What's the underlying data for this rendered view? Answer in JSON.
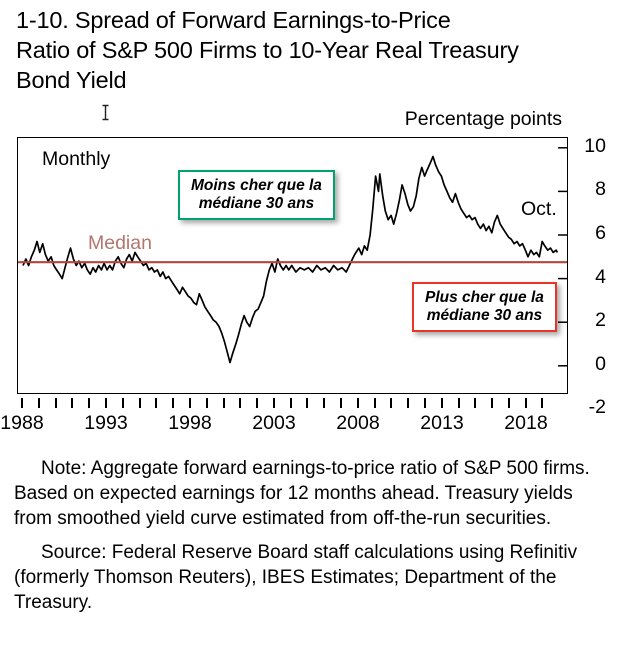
{
  "header": {
    "title_lines": [
      "1-10. Spread of Forward Earnings-to-Price",
      "Ratio of S&P 500 Firms to 10-Year Real Treasury",
      "Bond Yield"
    ],
    "axis_units": "Percentage points"
  },
  "chart_labels": {
    "frequency": "Monthly",
    "median": "Median",
    "last_obs": "Oct.",
    "cheap_line1": "Moins cher que la",
    "cheap_line2": "médiane 30 ans",
    "rich_line1": "Plus cher que la",
    "rich_line2": "médiane 30 ans"
  },
  "colors": {
    "series": "#000000",
    "median_line": "#b2453d",
    "median_label": "#b5756b",
    "cheap_box_border": "#00a36b",
    "rich_box_border": "#e8352a"
  },
  "chart_data": {
    "type": "line",
    "title": "1-10. Spread of Forward Earnings-to-Price Ratio of S&P 500 Firms to 10-Year Real Treasury Bond Yield",
    "ylabel": "Percentage points",
    "frequency": "Monthly",
    "ylim": [
      -2,
      10
    ],
    "yticks": [
      10,
      8,
      6,
      4,
      2,
      0,
      -2
    ],
    "xticks": [
      1988,
      1993,
      1998,
      2003,
      2008,
      2013,
      2018
    ],
    "xrange": [
      1988,
      2019
    ],
    "median": 4.75,
    "median_label": "Median",
    "last_point_label": "Oct.",
    "legend_position": "none",
    "grid": false,
    "series": [
      {
        "name": "Spread of forward earnings-to-price ratio to 10-year real Treasury yield",
        "points": [
          [
            1988.0,
            4.6
          ],
          [
            1988.17,
            4.9
          ],
          [
            1988.33,
            4.6
          ],
          [
            1988.5,
            5.0
          ],
          [
            1988.67,
            5.3
          ],
          [
            1988.83,
            5.7
          ],
          [
            1989.0,
            5.2
          ],
          [
            1989.17,
            5.6
          ],
          [
            1989.33,
            5.1
          ],
          [
            1989.5,
            4.8
          ],
          [
            1989.67,
            5.0
          ],
          [
            1989.83,
            4.6
          ],
          [
            1990.0,
            4.4
          ],
          [
            1990.17,
            4.2
          ],
          [
            1990.33,
            4.0
          ],
          [
            1990.5,
            4.5
          ],
          [
            1990.67,
            5.0
          ],
          [
            1990.83,
            5.4
          ],
          [
            1991.0,
            4.9
          ],
          [
            1991.17,
            4.6
          ],
          [
            1991.33,
            4.8
          ],
          [
            1991.5,
            4.5
          ],
          [
            1991.67,
            4.7
          ],
          [
            1991.83,
            4.4
          ],
          [
            1992.0,
            4.2
          ],
          [
            1992.17,
            4.5
          ],
          [
            1992.33,
            4.3
          ],
          [
            1992.5,
            4.6
          ],
          [
            1992.67,
            4.4
          ],
          [
            1992.83,
            4.7
          ],
          [
            1993.0,
            4.4
          ],
          [
            1993.17,
            4.6
          ],
          [
            1993.33,
            4.4
          ],
          [
            1993.5,
            4.8
          ],
          [
            1993.67,
            5.0
          ],
          [
            1993.83,
            4.7
          ],
          [
            1994.0,
            4.5
          ],
          [
            1994.17,
            4.9
          ],
          [
            1994.33,
            5.1
          ],
          [
            1994.5,
            4.8
          ],
          [
            1994.67,
            5.2
          ],
          [
            1994.83,
            5.0
          ],
          [
            1995.0,
            4.8
          ],
          [
            1995.17,
            4.6
          ],
          [
            1995.33,
            4.7
          ],
          [
            1995.5,
            4.4
          ],
          [
            1995.67,
            4.5
          ],
          [
            1995.83,
            4.3
          ],
          [
            1996.0,
            4.4
          ],
          [
            1996.17,
            4.1
          ],
          [
            1996.33,
            4.3
          ],
          [
            1996.5,
            4.0
          ],
          [
            1996.67,
            4.1
          ],
          [
            1996.83,
            3.9
          ],
          [
            1997.0,
            3.7
          ],
          [
            1997.17,
            3.5
          ],
          [
            1997.33,
            3.3
          ],
          [
            1997.5,
            3.6
          ],
          [
            1997.67,
            3.4
          ],
          [
            1997.83,
            3.2
          ],
          [
            1998.0,
            3.1
          ],
          [
            1998.17,
            2.9
          ],
          [
            1998.33,
            2.8
          ],
          [
            1998.5,
            3.3
          ],
          [
            1998.67,
            3.0
          ],
          [
            1998.83,
            2.7
          ],
          [
            1999.0,
            2.5
          ],
          [
            1999.17,
            2.3
          ],
          [
            1999.33,
            2.1
          ],
          [
            1999.5,
            2.0
          ],
          [
            1999.67,
            1.8
          ],
          [
            1999.83,
            1.5
          ],
          [
            2000.0,
            1.1
          ],
          [
            2000.17,
            0.6
          ],
          [
            2000.33,
            0.15
          ],
          [
            2000.5,
            0.6
          ],
          [
            2000.67,
            1.0
          ],
          [
            2000.83,
            1.4
          ],
          [
            2001.0,
            1.9
          ],
          [
            2001.17,
            2.3
          ],
          [
            2001.33,
            2.0
          ],
          [
            2001.5,
            1.8
          ],
          [
            2001.67,
            2.2
          ],
          [
            2001.83,
            2.5
          ],
          [
            2002.0,
            2.6
          ],
          [
            2002.17,
            2.9
          ],
          [
            2002.33,
            3.2
          ],
          [
            2002.5,
            3.9
          ],
          [
            2002.67,
            4.4
          ],
          [
            2002.83,
            4.7
          ],
          [
            2003.0,
            4.3
          ],
          [
            2003.17,
            4.9
          ],
          [
            2003.33,
            4.6
          ],
          [
            2003.5,
            4.4
          ],
          [
            2003.67,
            4.6
          ],
          [
            2003.83,
            4.4
          ],
          [
            2004.0,
            4.6
          ],
          [
            2004.25,
            4.3
          ],
          [
            2004.5,
            4.5
          ],
          [
            2004.75,
            4.4
          ],
          [
            2005.0,
            4.5
          ],
          [
            2005.25,
            4.3
          ],
          [
            2005.5,
            4.6
          ],
          [
            2005.75,
            4.4
          ],
          [
            2006.0,
            4.5
          ],
          [
            2006.25,
            4.3
          ],
          [
            2006.5,
            4.6
          ],
          [
            2006.75,
            4.4
          ],
          [
            2007.0,
            4.5
          ],
          [
            2007.25,
            4.3
          ],
          [
            2007.5,
            4.7
          ],
          [
            2007.75,
            5.1
          ],
          [
            2008.0,
            5.4
          ],
          [
            2008.17,
            5.1
          ],
          [
            2008.33,
            5.5
          ],
          [
            2008.5,
            5.3
          ],
          [
            2008.67,
            6.0
          ],
          [
            2008.83,
            7.2
          ],
          [
            2009.0,
            8.7
          ],
          [
            2009.17,
            8.0
          ],
          [
            2009.25,
            8.8
          ],
          [
            2009.42,
            7.8
          ],
          [
            2009.58,
            7.1
          ],
          [
            2009.75,
            6.7
          ],
          [
            2009.92,
            6.9
          ],
          [
            2010.08,
            6.5
          ],
          [
            2010.25,
            7.0
          ],
          [
            2010.42,
            7.6
          ],
          [
            2010.58,
            8.3
          ],
          [
            2010.75,
            7.9
          ],
          [
            2010.92,
            7.4
          ],
          [
            2011.08,
            7.1
          ],
          [
            2011.25,
            7.3
          ],
          [
            2011.42,
            7.8
          ],
          [
            2011.58,
            8.6
          ],
          [
            2011.75,
            9.1
          ],
          [
            2011.92,
            8.7
          ],
          [
            2012.08,
            9.0
          ],
          [
            2012.25,
            9.3
          ],
          [
            2012.42,
            9.6
          ],
          [
            2012.58,
            9.2
          ],
          [
            2012.75,
            8.9
          ],
          [
            2012.92,
            8.7
          ],
          [
            2013.08,
            8.3
          ],
          [
            2013.25,
            8.0
          ],
          [
            2013.42,
            7.7
          ],
          [
            2013.58,
            7.5
          ],
          [
            2013.75,
            7.9
          ],
          [
            2013.92,
            7.5
          ],
          [
            2014.08,
            7.2
          ],
          [
            2014.25,
            7.0
          ],
          [
            2014.42,
            6.8
          ],
          [
            2014.58,
            6.9
          ],
          [
            2014.75,
            6.7
          ],
          [
            2014.92,
            6.8
          ],
          [
            2015.08,
            6.5
          ],
          [
            2015.25,
            6.3
          ],
          [
            2015.42,
            6.5
          ],
          [
            2015.58,
            6.2
          ],
          [
            2015.75,
            6.4
          ],
          [
            2015.92,
            6.1
          ],
          [
            2016.08,
            6.6
          ],
          [
            2016.25,
            6.9
          ],
          [
            2016.42,
            6.5
          ],
          [
            2016.58,
            6.3
          ],
          [
            2016.75,
            6.1
          ],
          [
            2016.92,
            5.9
          ],
          [
            2017.08,
            5.8
          ],
          [
            2017.25,
            5.6
          ],
          [
            2017.42,
            5.7
          ],
          [
            2017.58,
            5.5
          ],
          [
            2017.75,
            5.6
          ],
          [
            2017.92,
            5.3
          ],
          [
            2018.08,
            5.0
          ],
          [
            2018.25,
            5.3
          ],
          [
            2018.42,
            5.1
          ],
          [
            2018.58,
            5.2
          ],
          [
            2018.75,
            5.0
          ],
          [
            2018.92,
            5.7
          ],
          [
            2019.08,
            5.5
          ],
          [
            2019.25,
            5.3
          ],
          [
            2019.42,
            5.4
          ],
          [
            2019.58,
            5.2
          ],
          [
            2019.75,
            5.3
          ],
          [
            2019.83,
            5.2
          ]
        ]
      }
    ],
    "annotations": [
      {
        "text": "Moins cher que la médiane 30 ans",
        "region": "above median"
      },
      {
        "text": "Plus cher que la médiane 30 ans",
        "region": "below median"
      }
    ]
  },
  "footnotes": {
    "note": "Note: Aggregate forward earnings-to-price ratio of S&P 500 firms. Based on expected earnings for 12 months ahead. Treasury yields from smoothed yield curve estimated from off-the-run securities.",
    "source": "Source: Federal Reserve Board staff calculations using Refinitiv (formerly Thomson Reuters), IBES Estimates; Department of the Treasury."
  }
}
